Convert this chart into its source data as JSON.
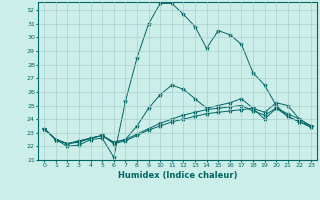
{
  "title": "",
  "xlabel": "Humidex (Indice chaleur)",
  "background_color": "#cceee8",
  "grid_color": "#aacccc",
  "line_color": "#006666",
  "xlim": [
    -0.5,
    23.5
  ],
  "ylim": [
    21,
    32.6
  ],
  "yticks": [
    21,
    22,
    23,
    24,
    25,
    26,
    27,
    28,
    29,
    30,
    31,
    32
  ],
  "xticks": [
    0,
    1,
    2,
    3,
    4,
    5,
    6,
    7,
    8,
    9,
    10,
    11,
    12,
    13,
    14,
    15,
    16,
    17,
    18,
    19,
    20,
    21,
    22,
    23
  ],
  "series": [
    [
      23.3,
      22.5,
      22.0,
      22.1,
      22.5,
      22.6,
      21.2,
      25.3,
      28.5,
      31.0,
      32.5,
      32.5,
      31.7,
      30.8,
      29.2,
      30.5,
      30.2,
      29.5,
      27.4,
      26.5,
      25.0,
      24.2,
      23.8,
      23.5
    ],
    [
      23.3,
      22.5,
      22.2,
      22.3,
      22.6,
      22.8,
      22.2,
      22.4,
      22.8,
      23.2,
      23.5,
      23.8,
      24.0,
      24.2,
      24.4,
      24.5,
      24.6,
      24.7,
      24.8,
      24.0,
      24.8,
      24.2,
      23.8,
      23.4
    ],
    [
      23.3,
      22.5,
      22.2,
      22.4,
      22.6,
      22.8,
      22.3,
      22.5,
      22.9,
      23.3,
      23.7,
      24.0,
      24.3,
      24.5,
      24.7,
      24.8,
      24.9,
      25.0,
      24.6,
      24.3,
      24.8,
      24.4,
      24.0,
      23.5
    ],
    [
      23.3,
      22.5,
      22.2,
      22.4,
      22.6,
      22.8,
      22.3,
      22.5,
      23.5,
      24.8,
      25.8,
      26.5,
      26.2,
      25.5,
      24.8,
      25.0,
      25.2,
      25.5,
      24.8,
      24.5,
      25.2,
      25.0,
      24.0,
      23.5
    ]
  ]
}
